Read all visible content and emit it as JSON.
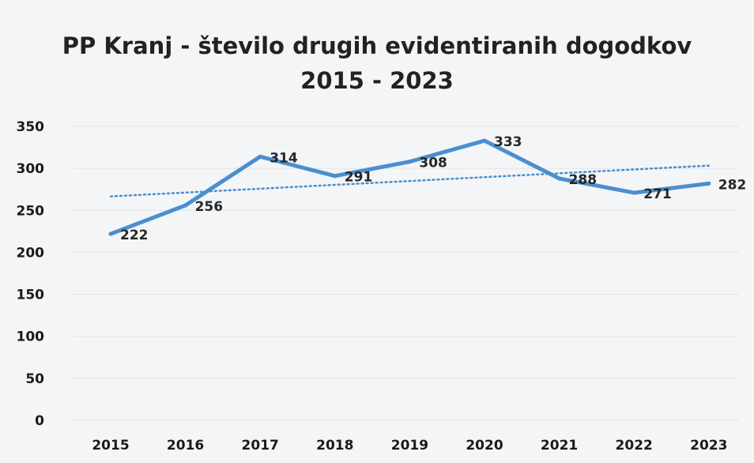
{
  "chart_data": {
    "type": "line",
    "title": "PP Kranj -  število drugih evidentiranih dogodkov",
    "subtitle": "2015 - 2023",
    "xlabel": "",
    "ylabel": "",
    "categories": [
      "2015",
      "2016",
      "2017",
      "2018",
      "2019",
      "2020",
      "2021",
      "2022",
      "2023"
    ],
    "series": [
      {
        "values": [
          222,
          256,
          314,
          291,
          308,
          333,
          288,
          271,
          282
        ],
        "color": "#4a8fcf"
      }
    ],
    "trendline": {
      "type": "linear",
      "style": "dotted",
      "color": "#4a8fcf"
    },
    "ylim": [
      0,
      350
    ],
    "yticks": [
      0,
      50,
      100,
      150,
      200,
      250,
      300,
      350
    ],
    "grid": true,
    "legend": "none",
    "data_labels": true
  }
}
